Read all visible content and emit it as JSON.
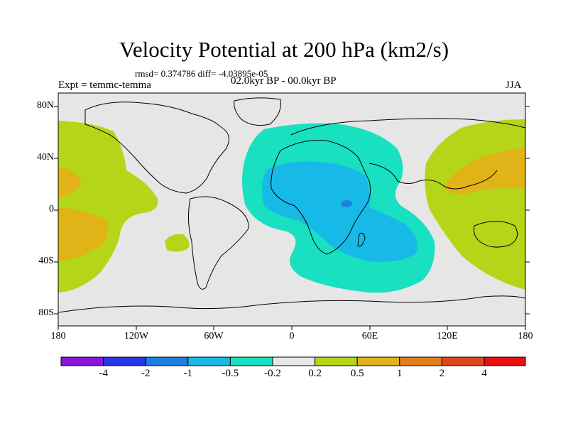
{
  "title": "Velocity Potential at 200 hPa (km2/s)",
  "stats_line": "rmsd= 0.374786 diff= -4.03895e-05",
  "period": "02.0kyr BP - 00.0kyr BP",
  "experiment": "Expt = temmc-temma",
  "season": "JJA",
  "latitude_labels": [
    "80N",
    "40N",
    "0",
    "40S",
    "80S"
  ],
  "longitude_labels": [
    "180",
    "120W",
    "60W",
    "0",
    "60E",
    "120E",
    "180"
  ],
  "colorbar": {
    "labels": [
      "-4",
      "-2",
      "-1",
      "-0.5",
      "-0.2",
      "0.2",
      "0.5",
      "1",
      "2",
      "4"
    ],
    "colors": [
      "#8a16d9",
      "#2a36e6",
      "#1f7fe0",
      "#17b9e6",
      "#18e0c0",
      "#e6e6e6",
      "#b5d518",
      "#e0b418",
      "#e0801c",
      "#e04818",
      "#e81010"
    ]
  },
  "colors": {
    "background": "#e6e6e6",
    "level_neg_0_2": "#18e0c0",
    "level_neg_0_5": "#17b9e6",
    "level_neg_1": "#1f7fe0",
    "level_pos_0_2": "#b5d518",
    "level_pos_0_5": "#e0b418"
  }
}
